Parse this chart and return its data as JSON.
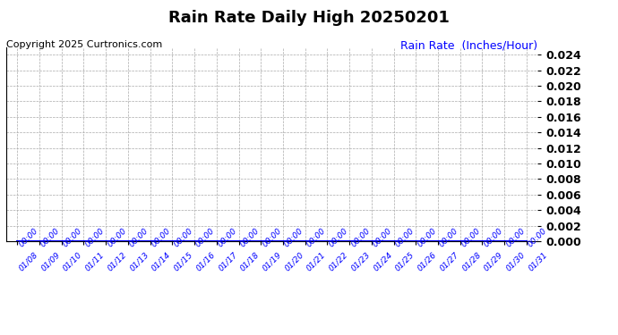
{
  "title": "Rain Rate Daily High 20250201",
  "copyright_text": "Copyright 2025 Curtronics.com",
  "legend_text": "Rain Rate  (Inches/Hour)",
  "legend_color": "blue",
  "background_color": "#ffffff",
  "grid_color": "#aaaaaa",
  "line_color": "blue",
  "date_labels": [
    "01/08",
    "01/09",
    "01/10",
    "01/11",
    "01/12",
    "01/13",
    "01/14",
    "01/15",
    "01/16",
    "01/17",
    "01/18",
    "01/19",
    "01/20",
    "01/21",
    "01/22",
    "01/23",
    "01/24",
    "01/25",
    "01/26",
    "01/27",
    "01/28",
    "01/29",
    "01/30",
    "01/31"
  ],
  "y_values": [
    0.0,
    0.0,
    0.0,
    0.0,
    0.0,
    0.0,
    0.0,
    0.0,
    0.0,
    0.0,
    0.0,
    0.0,
    0.0,
    0.0,
    0.0,
    0.0,
    0.0,
    0.0,
    0.0,
    0.0,
    0.0,
    0.0,
    0.0,
    0.0
  ],
  "ylim": [
    0.0,
    0.025
  ],
  "y_ticks": [
    0.0,
    0.002,
    0.004,
    0.006,
    0.008,
    0.01,
    0.012,
    0.014,
    0.016,
    0.018,
    0.02,
    0.022,
    0.024
  ],
  "title_fontsize": 13,
  "copyright_fontsize": 8,
  "legend_fontsize": 9,
  "ytick_fontsize": 9,
  "xtick_fontsize": 6.5
}
